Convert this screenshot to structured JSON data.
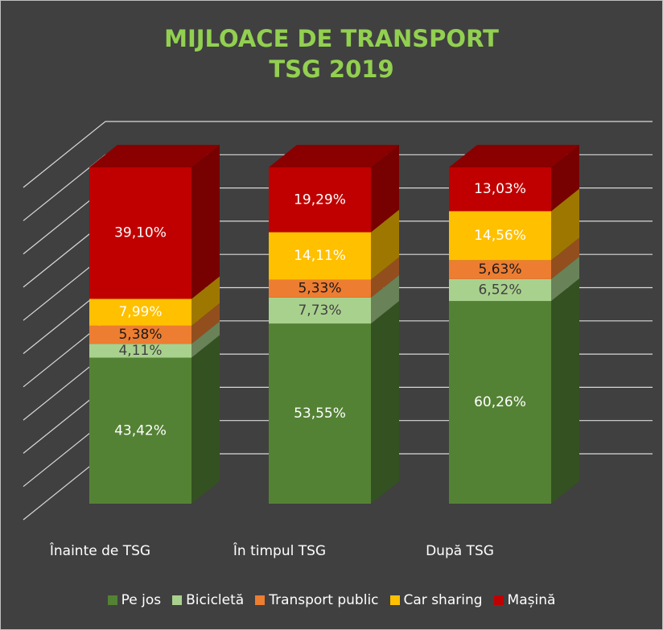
{
  "chart_data": {
    "type": "bar3d_stacked",
    "title": "MIJLOACE DE TRANSPORT\nTSG 2019",
    "categories": [
      "Înainte de TSG",
      "În timpul TSG",
      "După TSG"
    ],
    "ylim": [
      0,
      100
    ],
    "yticks": [
      0,
      10,
      20,
      30,
      40,
      50,
      60,
      70,
      80,
      90,
      100
    ],
    "grid": true,
    "legend": "bottom",
    "series": [
      {
        "name": "Pe jos",
        "color": "#548235",
        "values": [
          43.42,
          53.55,
          60.26
        ],
        "value_labels": [
          "43,42%",
          "53,55%",
          "60,26%"
        ]
      },
      {
        "name": "Bicicletă",
        "color": "#a9d18e",
        "values": [
          4.11,
          7.73,
          6.52
        ],
        "value_labels": [
          "4,11%",
          "7,73%",
          "6,52%"
        ]
      },
      {
        "name": "Transport public",
        "color": "#ed7d31",
        "values": [
          5.38,
          5.33,
          5.63
        ],
        "value_labels": [
          "5,38%",
          "5,33%",
          "5,63%"
        ]
      },
      {
        "name": "Car sharing",
        "color": "#ffc000",
        "values": [
          7.99,
          14.11,
          14.56
        ],
        "value_labels": [
          "7,99%",
          "14,11%",
          "14,56%"
        ]
      },
      {
        "name": "Mașină",
        "color": "#c00000",
        "values": [
          39.1,
          19.29,
          13.03
        ],
        "value_labels": [
          "39,10%",
          "19,29%",
          "13,03%"
        ]
      }
    ]
  }
}
